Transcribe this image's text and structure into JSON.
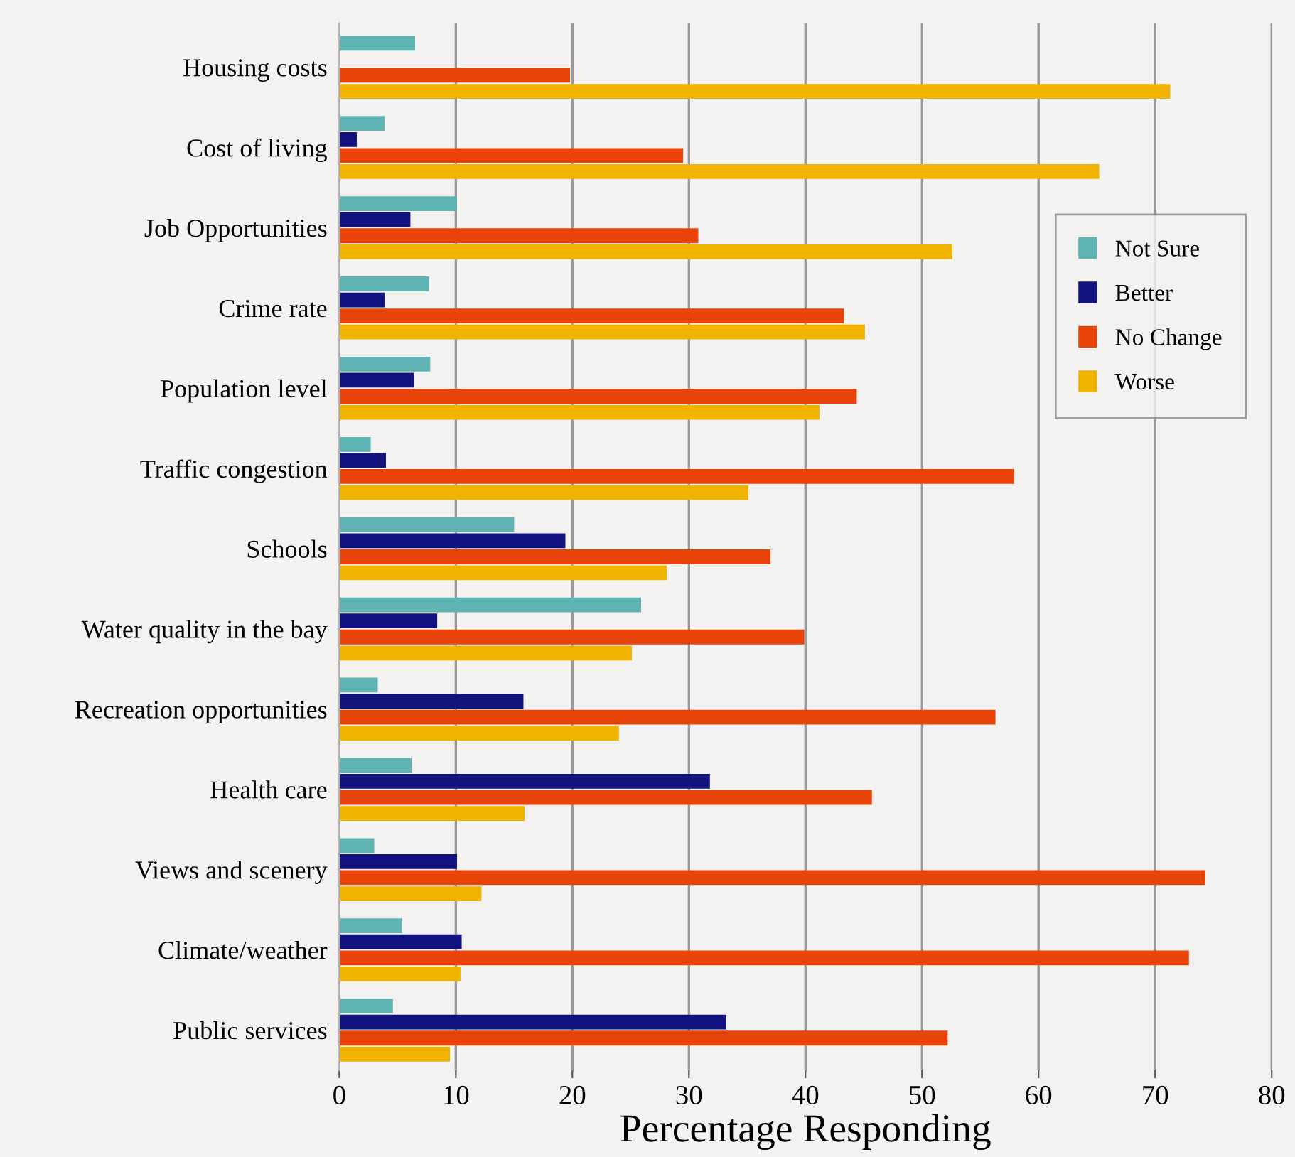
{
  "chart_data": {
    "type": "bar",
    "orientation": "horizontal",
    "xlabel": "Percentage Responding",
    "categories": [
      "Housing costs",
      "Cost of living",
      "Job Opportunities",
      "Crime rate",
      "Population level",
      "Traffic congestion",
      "Schools",
      "Water quality in the bay",
      "Recreation opportunities",
      "Health care",
      "Views and scenery",
      "Climate/weather",
      "Public services"
    ],
    "series": [
      {
        "name": "Not Sure",
        "color": "#5fb3b3",
        "values": [
          6.5,
          3.9,
          10.1,
          7.7,
          7.8,
          2.7,
          15.0,
          25.9,
          3.3,
          6.2,
          3.0,
          5.4,
          4.6
        ]
      },
      {
        "name": "Better",
        "color": "#13137f",
        "values": [
          0,
          1.5,
          6.1,
          3.9,
          6.4,
          4.0,
          19.4,
          8.4,
          15.8,
          31.8,
          10.1,
          10.5,
          33.2
        ]
      },
      {
        "name": "No Change",
        "color": "#e8440a",
        "values": [
          19.8,
          29.5,
          30.8,
          43.3,
          44.4,
          57.9,
          37.0,
          39.9,
          56.3,
          45.7,
          74.3,
          72.9,
          52.2
        ]
      },
      {
        "name": "Worse",
        "color": "#f0b400",
        "values": [
          71.3,
          65.2,
          52.6,
          45.1,
          41.2,
          35.1,
          28.1,
          25.1,
          24.0,
          15.9,
          12.2,
          10.4,
          9.5
        ]
      }
    ],
    "xlim": [
      0,
      80
    ],
    "xticks": [
      0,
      10,
      20,
      30,
      40,
      50,
      60,
      70,
      80
    ],
    "grid": "x",
    "legend": "right"
  }
}
